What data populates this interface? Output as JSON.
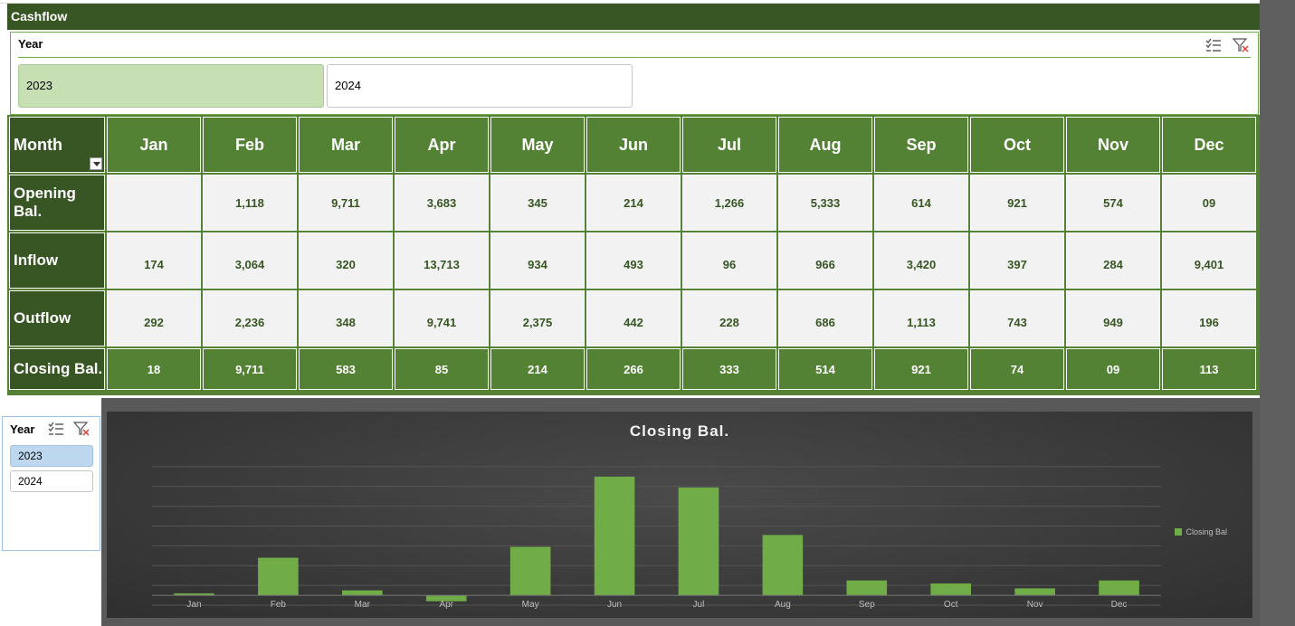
{
  "panel": {
    "title": "Cashflow"
  },
  "top_slicer": {
    "header": "Year",
    "icons": [
      "multi-select-icon",
      "clear-filter-icon"
    ],
    "options": [
      {
        "label": "2023",
        "selected": true
      },
      {
        "label": "2024",
        "selected": false
      }
    ]
  },
  "table": {
    "corner": "Month",
    "months": [
      "Jan",
      "Feb",
      "Mar",
      "Apr",
      "May",
      "Jun",
      "Jul",
      "Aug",
      "Sep",
      "Oct",
      "Nov",
      "Dec"
    ],
    "rows": [
      {
        "label": "Opening Bal.",
        "values": [
          "",
          "1,118",
          "9,711",
          "3,683",
          "345",
          "214",
          "1,266",
          "5,333",
          "614",
          "921",
          "574",
          "09"
        ]
      },
      {
        "label": "Inflow",
        "values": [
          "174",
          "3,064",
          "320",
          "13,713",
          "934",
          "493",
          "96",
          "966",
          "3,420",
          "397",
          "284",
          "9,401"
        ]
      },
      {
        "label": "Outflow",
        "values": [
          "292",
          "2,236",
          "348",
          "9,741",
          "2,375",
          "442",
          "228",
          "686",
          "1,113",
          "743",
          "949",
          "196"
        ]
      },
      {
        "label": "Closing Bal.",
        "values": [
          "18",
          "9,711",
          "583",
          "85",
          "214",
          "266",
          "333",
          "514",
          "921",
          "74",
          "09",
          "113"
        ]
      }
    ]
  },
  "left_slicer": {
    "header": "Year",
    "options": [
      {
        "label": "2023",
        "selected": true
      },
      {
        "label": "2024",
        "selected": false
      }
    ]
  },
  "colors": {
    "dark_green": "#375623",
    "mid_green": "#548235",
    "bar_green": "#70ad47",
    "slicer_selected": "#c6e0b4"
  },
  "chart_data": {
    "type": "bar",
    "title": "Closing Bal.",
    "categories": [
      "Jan",
      "Feb",
      "Mar",
      "Apr",
      "May",
      "Jun",
      "Jul",
      "Aug",
      "Sep",
      "Oct",
      "Nov",
      "Dec"
    ],
    "series": [
      {
        "name": "Closing Bal",
        "values": [
          0.2,
          3.8,
          0.5,
          -0.6,
          4.9,
          12.0,
          10.9,
          6.1,
          1.5,
          1.2,
          0.7,
          1.5
        ]
      }
    ],
    "ylim": [
      -1,
      14
    ],
    "grid": true,
    "legend": "right"
  }
}
